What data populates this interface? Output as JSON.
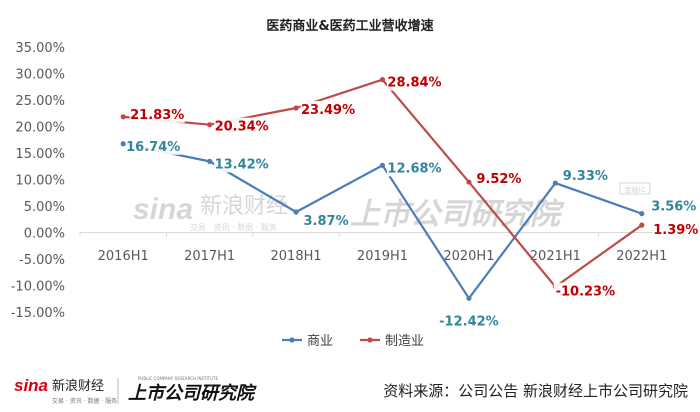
{
  "chart_data": {
    "type": "line",
    "title": "医药商业&医药工业营收增速",
    "categories": [
      "2016H1",
      "2017H1",
      "2018H1",
      "2019H1",
      "2020H1",
      "2021H1",
      "2022H1"
    ],
    "series": [
      {
        "name": "商业",
        "color": "#4A7EBB",
        "label_color": "#31859C",
        "values": [
          16.74,
          13.42,
          3.87,
          12.68,
          -12.42,
          9.33,
          3.56
        ],
        "labels": [
          "16.74%",
          "13.42%",
          "3.87%",
          "12.68%",
          "-12.42%",
          "9.33%",
          "3.56%"
        ]
      },
      {
        "name": "制造业",
        "color": "#BE4B48",
        "label_color": "#C00000",
        "values": [
          21.83,
          20.34,
          23.49,
          28.84,
          9.52,
          -10.23,
          1.39
        ],
        "labels": [
          "21.83%",
          "20.34%",
          "23.49%",
          "28.84%",
          "9.52%",
          "-10.23%",
          "1.39%"
        ]
      }
    ],
    "ylim": [
      -15,
      35
    ],
    "yticks": [
      35,
      30,
      25,
      20,
      15,
      10,
      5,
      0,
      -5,
      -10,
      -15
    ],
    "ytick_labels": [
      "35.00%",
      "30.00%",
      "25.00%",
      "20.00%",
      "15.00%",
      "10.00%",
      "5.00%",
      "0.00%",
      "-5.00%",
      "-10.00%",
      "-15.00%"
    ],
    "legend_position": "bottom",
    "grid": false
  },
  "footer": {
    "brand_sina": "sina",
    "brand_cn": "新浪财经",
    "brand_sub": "交易 · 资讯 · 数据 · 服务",
    "brand_platform": "上市公司研究院",
    "brand_platform_en": "PUBLIC COMPANY RESEARCH INSTITUTE",
    "source": "资料来源：公司公告 新浪财经上市公司研究院"
  },
  "watermark": {
    "sina": "sina",
    "cn": "新浪财经",
    "sub": "交易 · 资讯 · 数据 · 服务",
    "platform": "上市公司研究院",
    "badge": "金融IC"
  },
  "colors": {
    "axis": "#d9d9d9",
    "tick_text": "#595959",
    "title": "#222222",
    "watermark": "#d6d6d6",
    "brand_red": "#d7000f"
  }
}
